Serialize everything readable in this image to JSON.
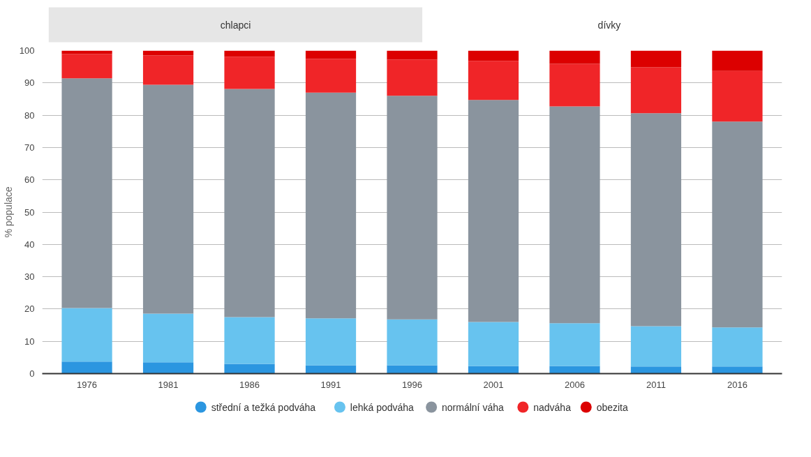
{
  "chart_data": {
    "type": "bar",
    "stacked": true,
    "ylabel": "% populace",
    "annotations": [
      "chlapci",
      "dívky"
    ],
    "categories": [
      "1976",
      "1981",
      "1986",
      "1991",
      "1996",
      "2001",
      "2006",
      "2011",
      "2016"
    ],
    "series": [
      {
        "name": "střední a težká podváha",
        "color": "#2b96e0",
        "values": [
          3.7,
          3.5,
          3.0,
          2.6,
          2.6,
          2.4,
          2.4,
          2.2,
          2.2
        ]
      },
      {
        "name": "lehká podváha",
        "color": "#67c3ef",
        "values": [
          16.6,
          15.1,
          14.5,
          14.5,
          14.2,
          13.6,
          13.2,
          12.5,
          12.1
        ]
      },
      {
        "name": "normální váha",
        "color": "#8a949e",
        "values": [
          71.1,
          70.8,
          70.6,
          69.9,
          69.2,
          68.7,
          67.1,
          65.9,
          63.7
        ]
      },
      {
        "name": "nadváha",
        "color": "#f02528",
        "values": [
          7.5,
          9.1,
          10.0,
          10.4,
          11.2,
          12.1,
          13.2,
          14.2,
          15.7
        ]
      },
      {
        "name": "obezita",
        "color": "#dc0000",
        "values": [
          1.1,
          1.5,
          1.9,
          2.6,
          2.8,
          3.2,
          4.1,
          5.2,
          6.3
        ]
      }
    ],
    "ylim": [
      0,
      100
    ],
    "yticks": [
      0,
      10,
      20,
      30,
      40,
      50,
      60,
      70,
      80,
      90,
      100
    ],
    "grid": "y",
    "legend": "bottom"
  }
}
